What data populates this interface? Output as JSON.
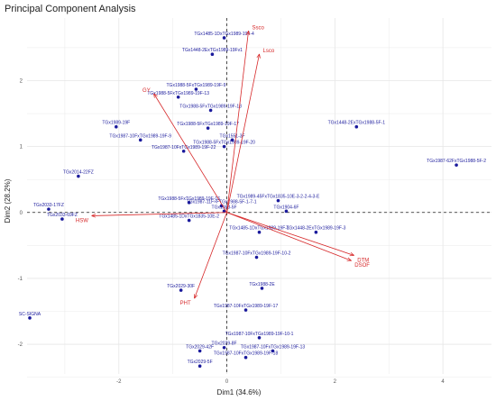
{
  "colors": {
    "points": "#1a1a9c",
    "arrows": "#d62728",
    "grid": "#e6e6e6",
    "zero_lines": "#222222"
  },
  "chart_data": {
    "type": "scatter",
    "title": "Principal Component Analysis",
    "xlabel": "Dim1 (34.6%)",
    "ylabel": "Dim2 (28.2%)",
    "xlim": [
      -3.7,
      4.9
    ],
    "ylim": [
      -2.45,
      2.95
    ],
    "xticks": [
      -2,
      0,
      2,
      4
    ],
    "yticks": [
      -2,
      -1,
      0,
      1,
      2
    ],
    "xtick_labels": [
      "-2",
      "0",
      "2",
      "4"
    ],
    "ytick_labels": [
      "-2",
      "-1",
      "0",
      "1",
      "2"
    ],
    "grid": true,
    "points": [
      {
        "label": "TGx1485-1DxTGx1989-19F-4",
        "x": -0.05,
        "y": 2.65
      },
      {
        "label": "TGx1448-2ExTGx1989-19Fv1",
        "x": -0.27,
        "y": 2.4
      },
      {
        "label": "TGx1988-5FxTGx1989-19F-9",
        "x": -0.57,
        "y": 1.87
      },
      {
        "label": "TGx1988-5FxTGx1989-19F-13",
        "x": -0.9,
        "y": 1.75
      },
      {
        "label": "TGx1988-5FxTGx1989-19F-18",
        "x": -0.3,
        "y": 1.55
      },
      {
        "label": "TGx1448-2ExTGx1988-5F-1",
        "x": 2.4,
        "y": 1.3
      },
      {
        "label": "TGx1988-5FxTGx1989-19F-17",
        "x": -0.35,
        "y": 1.28
      },
      {
        "label": "TGx1989-19F",
        "x": -2.05,
        "y": 1.3
      },
      {
        "label": "TGx1551-3F",
        "x": 0.1,
        "y": 1.1
      },
      {
        "label": "TGx1987-10FxTGx1989-19F-9",
        "x": -1.6,
        "y": 1.1
      },
      {
        "label": "TGx1988-5FxTGx1989-19F-20",
        "x": -0.05,
        "y": 1.0
      },
      {
        "label": "TGx1987-10FxTGx1989-19F-22",
        "x": -0.8,
        "y": 0.93
      },
      {
        "label": "TGx1987-62FxTGx1988-5F-2",
        "x": 4.25,
        "y": 0.72
      },
      {
        "label": "TGx2014-22FZ",
        "x": -2.75,
        "y": 0.55
      },
      {
        "label": "TGx2033-17FZ",
        "x": -3.3,
        "y": 0.05
      },
      {
        "label": "TGx2033-69FZ",
        "x": -3.05,
        "y": -0.1
      },
      {
        "label": "TGx1988-5FxTGx1989-19F-16",
        "x": -0.7,
        "y": 0.15
      },
      {
        "label": "TGx1987-11F×FTGx1988-5F-1-7-1",
        "x": -0.1,
        "y": 0.1
      },
      {
        "label": "TGx1988-5F",
        "x": -0.05,
        "y": 0.02
      },
      {
        "label": "TGx1485-1DxTGx1835-10E-2",
        "x": -0.7,
        "y": -0.12
      },
      {
        "label": "TGx1989-45FxTGx1835-10E-3-2-2-4-3-E",
        "x": 0.95,
        "y": 0.18
      },
      {
        "label": "TGx1904-6F",
        "x": 1.1,
        "y": 0.02
      },
      {
        "label": "TGx1485-1DxTGx1989-19F-1",
        "x": 0.6,
        "y": -0.3
      },
      {
        "label": "TGx1448-2ExTGx1989-19F-3",
        "x": 1.65,
        "y": -0.3
      },
      {
        "label": "TGx1987-10FxTGx1989-19F-10-2",
        "x": 0.55,
        "y": -0.68
      },
      {
        "label": "TGx2029-30F",
        "x": -0.85,
        "y": -1.18
      },
      {
        "label": "TGx1988-2E",
        "x": 0.65,
        "y": -1.15
      },
      {
        "label": "TGx1987-10FxTGx1989-19F-17",
        "x": 0.35,
        "y": -1.48
      },
      {
        "label": "SC-SIGNA",
        "x": -3.65,
        "y": -1.6
      },
      {
        "label": "TGx1987-10FxTGx1989-19F-10-1",
        "x": 0.6,
        "y": -1.9
      },
      {
        "label": "TGx2029-8F",
        "x": -0.05,
        "y": -2.05
      },
      {
        "label": "TGx2029-42F",
        "x": -0.5,
        "y": -2.1
      },
      {
        "label": "TGx1987-10FxTGx1989-19F-13",
        "x": 0.85,
        "y": -2.1
      },
      {
        "label": "TGx1987-10FxTGx1989-19F-18",
        "x": 0.35,
        "y": -2.2
      },
      {
        "label": "TGx2029-5F",
        "x": -0.5,
        "y": -2.33
      }
    ],
    "variables": [
      {
        "label": "Ssco",
        "x": 0.4,
        "y": 2.75
      },
      {
        "label": "Lsco",
        "x": 0.6,
        "y": 2.4
      },
      {
        "label": "GY",
        "x": -1.35,
        "y": 1.8
      },
      {
        "label": "HSW",
        "x": -2.5,
        "y": -0.05
      },
      {
        "label": "DTM",
        "x": 2.35,
        "y": -0.65
      },
      {
        "label": "DSOF",
        "x": 2.3,
        "y": -0.73
      },
      {
        "label": "PHT",
        "x": -0.6,
        "y": -1.3
      }
    ]
  }
}
